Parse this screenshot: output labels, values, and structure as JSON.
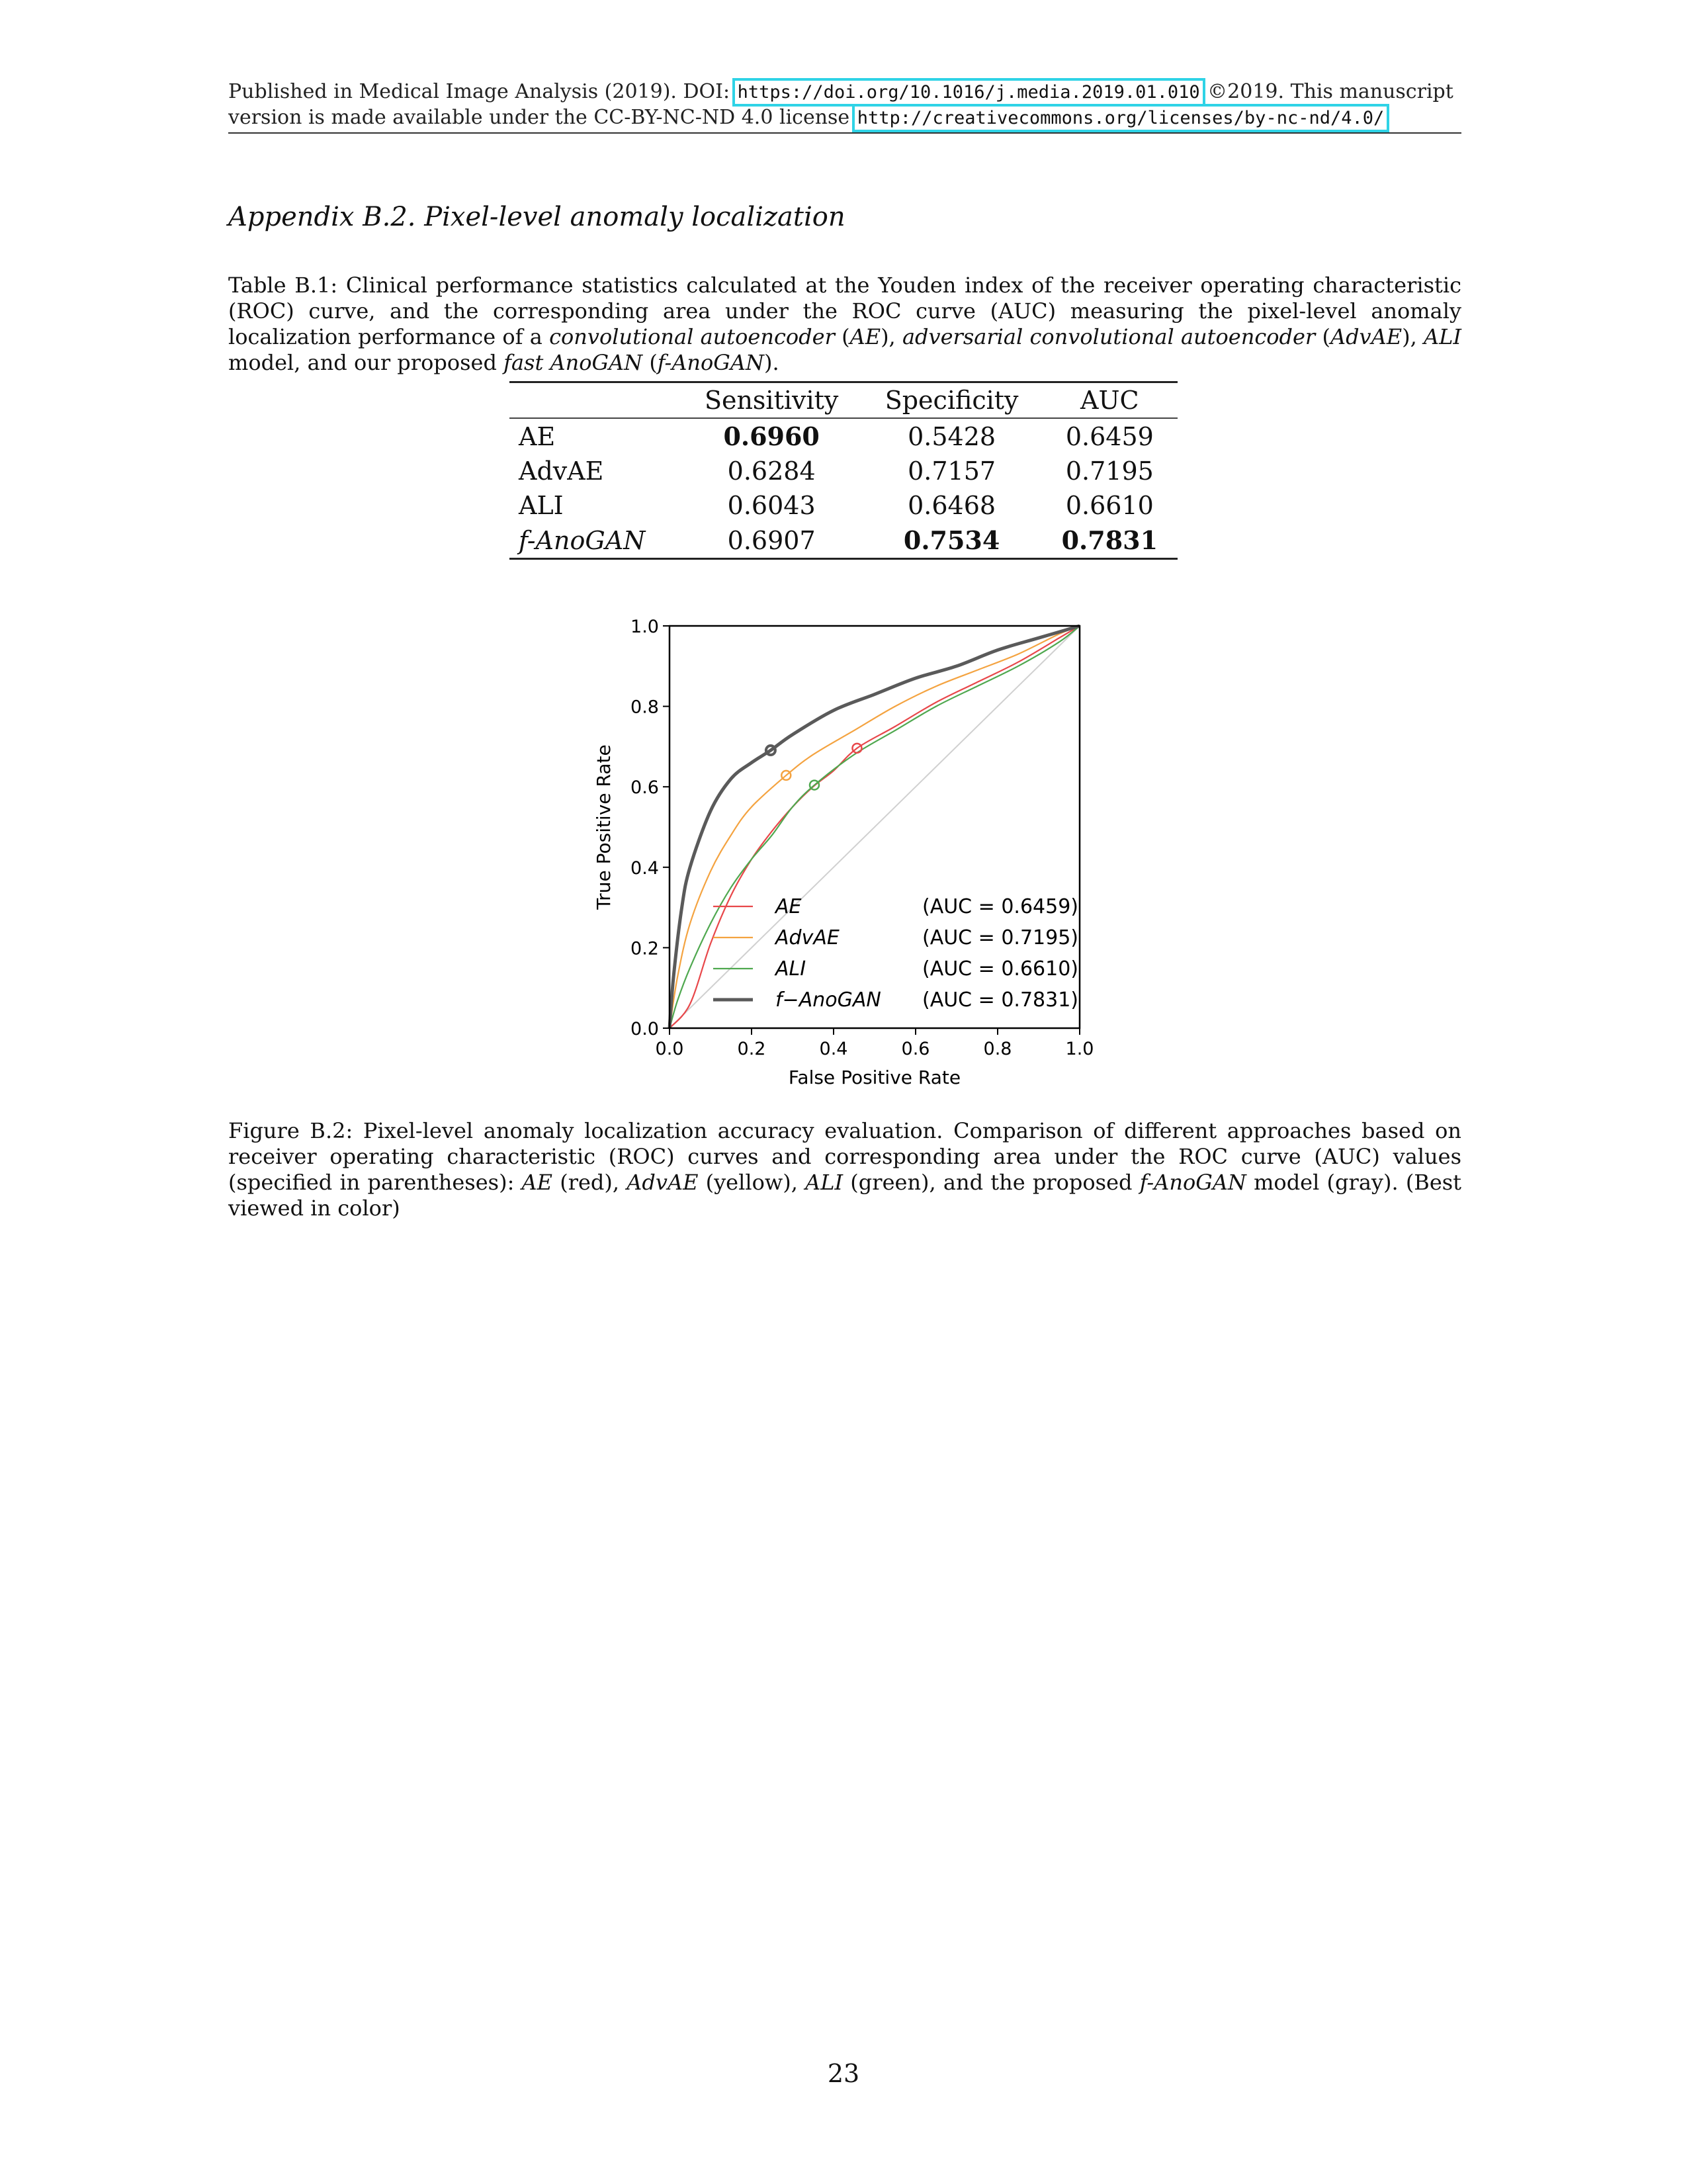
{
  "header": {
    "line1_prefix": "Published in Medical Image Analysis (2019). DOI: ",
    "doi": "https://doi.org/10.1016/j.media.2019.01.010",
    "line1_suffix": " ©2019. This manuscript",
    "line2_prefix": "version is made available under the CC-BY-NC-ND 4.0 license ",
    "license_url": "http://creativecommons.org/licenses/by-nc-nd/4.0/"
  },
  "section_title": "Appendix B.2.  Pixel-level anomaly localization",
  "table_caption": {
    "label": "Table B.1:",
    "part1": " Clinical performance statistics calculated at the Youden index of the receiver operating characteristic (ROC) curve, and the corresponding area under the ROC curve (AUC) measuring the pixel-level anomaly localization performance of a ",
    "ae_term": "convolutional autoencoder",
    "part2": " (",
    "ae_abbr": "AE",
    "part3": "), ",
    "advae_term": "adversarial convolutional autoencoder",
    "part4": " (",
    "advae_abbr": "AdvAE",
    "part5": "), ",
    "ali_abbr": "ALI",
    "part6": " model, and our proposed ",
    "fano_term": "fast AnoGAN",
    "part7": " (",
    "fano_abbr": "f-AnoGAN",
    "part8": ")."
  },
  "table": {
    "headers": [
      "",
      "Sensitivity",
      "Specificity",
      "AUC"
    ],
    "rows": [
      {
        "model": "AE",
        "sensitivity": "0.6960",
        "specificity": "0.5428",
        "auc": "0.6459"
      },
      {
        "model": "AdvAE",
        "sensitivity": "0.6284",
        "specificity": "0.7157",
        "auc": "0.7195"
      },
      {
        "model": "ALI",
        "sensitivity": "0.6043",
        "specificity": "0.6468",
        "auc": "0.6610"
      },
      {
        "model": "f-AnoGAN",
        "sensitivity": "0.6907",
        "specificity": "0.7534",
        "auc": "0.7831"
      }
    ]
  },
  "chart_data": {
    "type": "line",
    "title": "",
    "xlabel": "False Positive Rate",
    "ylabel": "True Positive Rate",
    "xlim": [
      0.0,
      1.0
    ],
    "ylim": [
      0.0,
      1.0
    ],
    "xticks": [
      "0.0",
      "0.2",
      "0.4",
      "0.6",
      "0.8",
      "1.0"
    ],
    "yticks": [
      "0.0",
      "0.2",
      "0.4",
      "0.6",
      "0.8",
      "1.0"
    ],
    "grid": false,
    "legend_position": "lower-right",
    "diagonal": {
      "x": [
        0,
        1
      ],
      "y": [
        0,
        1
      ],
      "color": "#d0d0d0"
    },
    "series": [
      {
        "name": "AE",
        "legend_value": "(AUC = 0.6459)",
        "color": "#e8474a",
        "width": "thin",
        "x": [
          0.0,
          0.05,
          0.1,
          0.15,
          0.2,
          0.25,
          0.3,
          0.35,
          0.4,
          0.4572,
          0.55,
          0.65,
          0.75,
          0.85,
          0.95,
          1.0
        ],
        "y": [
          0.0,
          0.06,
          0.21,
          0.33,
          0.42,
          0.49,
          0.55,
          0.6,
          0.64,
          0.696,
          0.75,
          0.81,
          0.86,
          0.91,
          0.97,
          1.0
        ],
        "marker": {
          "x": 0.4572,
          "y": 0.696
        }
      },
      {
        "name": "AdvAE",
        "legend_value": "(AUC = 0.7195)",
        "color": "#f4a340",
        "width": "thin",
        "x": [
          0.0,
          0.02,
          0.05,
          0.1,
          0.15,
          0.2,
          0.2843,
          0.35,
          0.45,
          0.55,
          0.65,
          0.75,
          0.85,
          0.95,
          1.0
        ],
        "y": [
          0.0,
          0.13,
          0.26,
          0.39,
          0.48,
          0.55,
          0.6284,
          0.68,
          0.74,
          0.8,
          0.85,
          0.89,
          0.93,
          0.98,
          1.0
        ],
        "marker": {
          "x": 0.2843,
          "y": 0.6284
        }
      },
      {
        "name": "ALI",
        "legend_value": "(AUC = 0.6610)",
        "color": "#4fa84f",
        "width": "thin",
        "x": [
          0.0,
          0.02,
          0.05,
          0.1,
          0.15,
          0.2,
          0.25,
          0.3,
          0.3532,
          0.45,
          0.55,
          0.65,
          0.75,
          0.85,
          0.95,
          1.0
        ],
        "y": [
          0.0,
          0.07,
          0.15,
          0.26,
          0.35,
          0.42,
          0.48,
          0.55,
          0.6043,
          0.68,
          0.74,
          0.8,
          0.85,
          0.9,
          0.96,
          1.0
        ],
        "marker": {
          "x": 0.3532,
          "y": 0.6043
        }
      },
      {
        "name": "f-AnoGAN",
        "legend_value": "(AUC = 0.7831)",
        "color": "#5a5a5a",
        "width": "thick",
        "x": [
          0.0,
          0.01,
          0.03,
          0.05,
          0.1,
          0.15,
          0.2,
          0.2466,
          0.3,
          0.4,
          0.5,
          0.6,
          0.7,
          0.8,
          0.9,
          1.0
        ],
        "y": [
          0.0,
          0.13,
          0.3,
          0.4,
          0.54,
          0.62,
          0.66,
          0.6907,
          0.73,
          0.79,
          0.83,
          0.87,
          0.9,
          0.94,
          0.97,
          1.0
        ],
        "marker": {
          "x": 0.2466,
          "y": 0.6907
        }
      }
    ],
    "legend_labels": [
      "AE",
      "AdvAE",
      "ALI",
      "f−AnoGAN"
    ]
  },
  "figure_caption": {
    "label": "Figure B.2:",
    "part1": " Pixel-level anomaly localization accuracy evaluation. Comparison of different approaches based on receiver operating characteristic (ROC) curves and corresponding area under the ROC curve (AUC) values (specified in parentheses): ",
    "ae": "AE",
    "part2": " (red), ",
    "advae": "AdvAE",
    "part3": " (yellow), ",
    "ali": "ALI",
    "part4": " (green), and the proposed ",
    "fano": "f-AnoGAN",
    "part5": " model (gray). (Best viewed in color)"
  },
  "page_number": "23"
}
